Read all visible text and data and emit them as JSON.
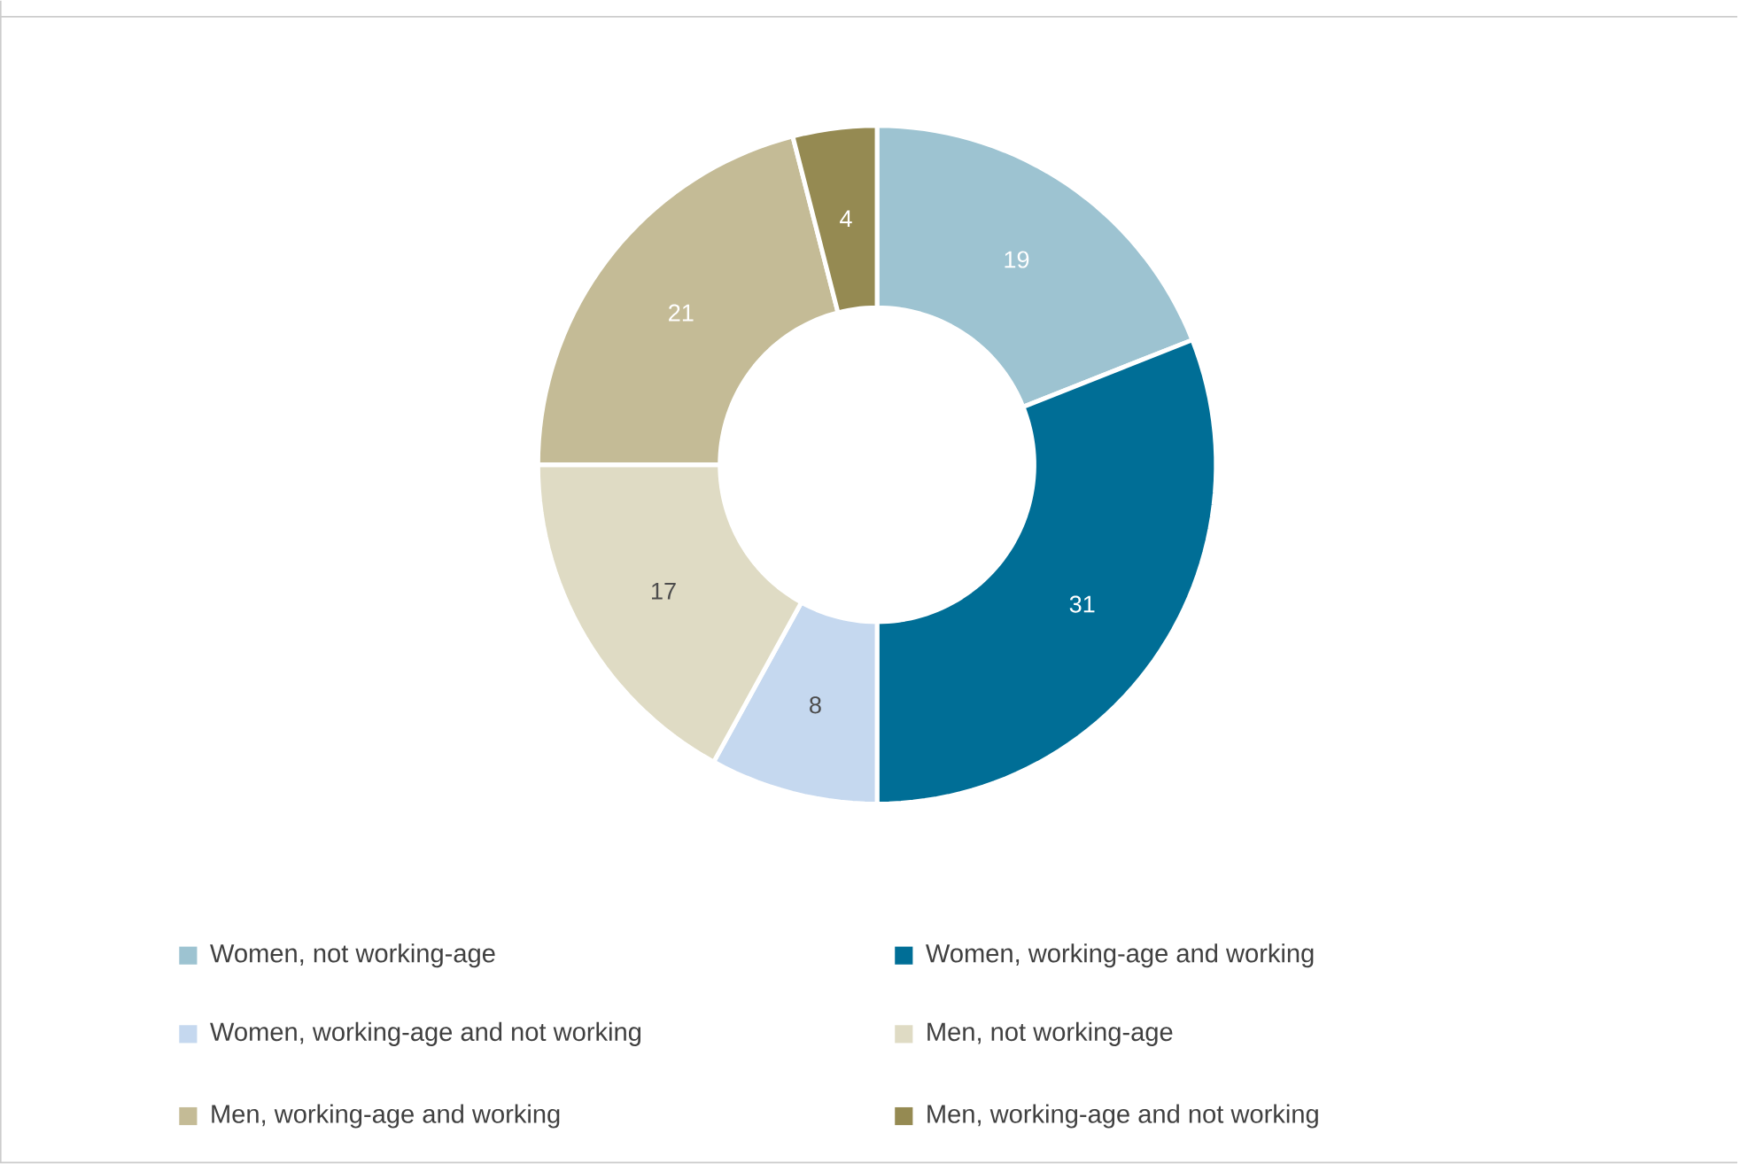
{
  "chart_data": {
    "type": "donut",
    "categories": [
      "Women, not working-age",
      "Women, working-age and working",
      "Women, working-age and not working",
      "Men, not working-age",
      "Men, working-age and working",
      "Men, working-age and not working"
    ],
    "values": [
      19,
      31,
      8,
      17,
      21,
      4
    ],
    "colors": [
      "#9dc3d1",
      "#006e96",
      "#c5d8ef",
      "#dfdbc4",
      "#c4bb96",
      "#958a52"
    ],
    "data_labels": true,
    "legend": "bottom"
  }
}
